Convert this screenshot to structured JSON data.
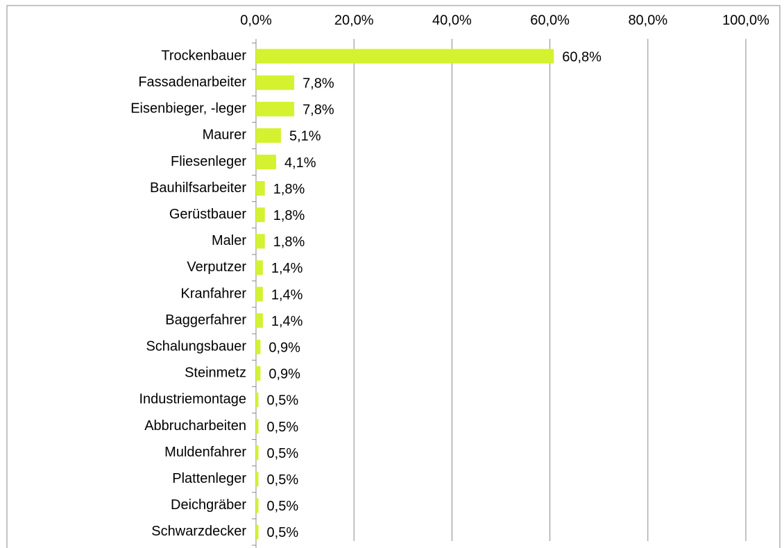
{
  "chart_data": {
    "type": "bar",
    "orientation": "horizontal",
    "categories": [
      "Trockenbauer",
      "Fassadenarbeiter",
      "Eisenbieger, -leger",
      "Maurer",
      "Fliesenleger",
      "Bauhilfsarbeiter",
      "Gerüstbauer",
      "Maler",
      "Verputzer",
      "Kranfahrer",
      "Baggerfahrer",
      "Schalungsbauer",
      "Steinmetz",
      "Industriemontage",
      "Abbrucharbeiten",
      "Muldenfahrer",
      "Plattenleger",
      "Deichgräber",
      "Schwarzdecker"
    ],
    "values": [
      60.8,
      7.8,
      7.8,
      5.1,
      4.1,
      1.8,
      1.8,
      1.8,
      1.4,
      1.4,
      1.4,
      0.9,
      0.9,
      0.5,
      0.5,
      0.5,
      0.5,
      0.5,
      0.5
    ],
    "value_labels": [
      "60,8%",
      "7,8%",
      "7,8%",
      "5,1%",
      "4,1%",
      "1,8%",
      "1,8%",
      "1,8%",
      "1,4%",
      "1,4%",
      "1,4%",
      "0,9%",
      "0,9%",
      "0,5%",
      "0,5%",
      "0,5%",
      "0,5%",
      "0,5%",
      "0,5%"
    ],
    "color": "#d4f22f",
    "xlim": [
      0,
      100
    ],
    "xticks": [
      {
        "value": 0,
        "label": "0,0%"
      },
      {
        "value": 20,
        "label": "20,0%"
      },
      {
        "value": 40,
        "label": "40,0%"
      },
      {
        "value": 60,
        "label": "60,0%"
      },
      {
        "value": 80,
        "label": "80,0%"
      },
      {
        "value": 100,
        "label": "100,0%"
      }
    ],
    "grid": true
  }
}
